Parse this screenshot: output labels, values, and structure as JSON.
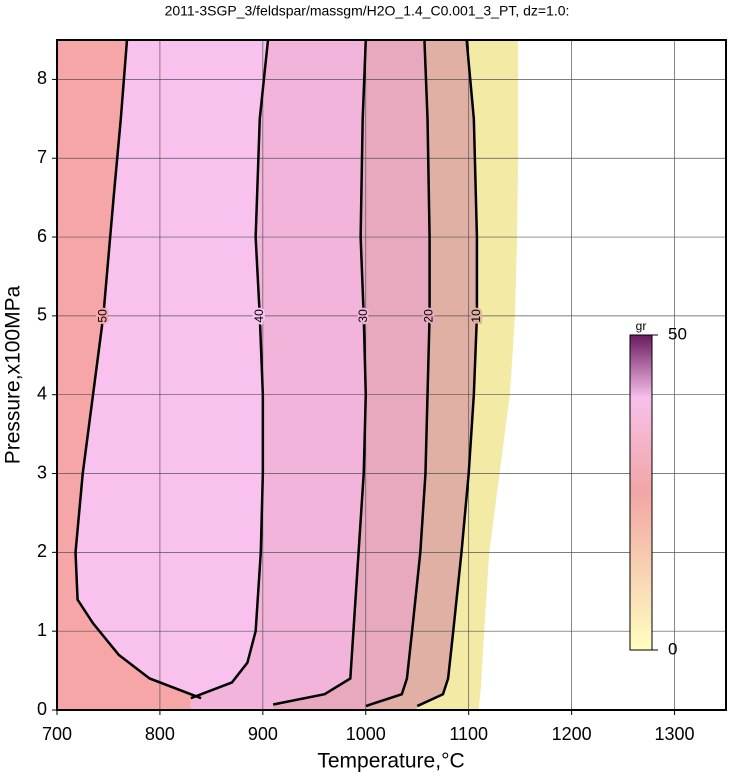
{
  "chart_data": {
    "type": "contour",
    "title": "2011-3SGP_3/feldspar/massgm/H2O_1.4_C0.001_3_PT, dz=1.0:",
    "x_label": "Temperature,°C",
    "y_label": "Pressure,x100MPa",
    "xlim": [
      700,
      1350
    ],
    "xticks": [
      700,
      800,
      900,
      1000,
      1100,
      1200,
      1300
    ],
    "ylim": [
      0,
      8.5
    ],
    "yticks": [
      0,
      1,
      2,
      3,
      4,
      5,
      6,
      7,
      8
    ],
    "grid": true,
    "contours": [
      {
        "level": 50,
        "color": "#f6a6a6",
        "x": [
          768,
          762,
          755,
          745,
          735,
          725,
          718,
          720,
          735,
          760,
          790,
          840
        ],
        "y": [
          8.5,
          7.5,
          6.5,
          5,
          4,
          3,
          2,
          1.4,
          1.1,
          0.7,
          0.4,
          0.15
        ]
      },
      {
        "level": 40,
        "color": "#f9c2ee",
        "x": [
          905,
          897,
          893,
          897,
          900,
          900,
          898,
          893,
          885,
          870,
          830
        ],
        "y": [
          8.5,
          7.5,
          6,
          5,
          4,
          3,
          2,
          1,
          0.6,
          0.35,
          0.15
        ]
      },
      {
        "level": 30,
        "color": "#f3b4dc",
        "x": [
          1000,
          997,
          995,
          998,
          1000,
          998,
          993,
          988,
          985,
          960,
          910
        ],
        "y": [
          8.5,
          7.5,
          6,
          5,
          4,
          3,
          2,
          1,
          0.4,
          0.2,
          0.07
        ]
      },
      {
        "level": 20,
        "color": "#e8a9bf",
        "x": [
          1057,
          1060,
          1062,
          1062,
          1060,
          1058,
          1053,
          1045,
          1040,
          1035,
          1000
        ],
        "y": [
          8.5,
          7.5,
          6,
          5,
          4,
          3,
          2,
          1,
          0.4,
          0.2,
          0.05
        ]
      },
      {
        "level": 10,
        "color": "#e0b0a4",
        "x": [
          1098,
          1105,
          1108,
          1108,
          1105,
          1100,
          1093,
          1085,
          1080,
          1075,
          1050
        ],
        "y": [
          8.5,
          7.5,
          6,
          5,
          4,
          3,
          2,
          1,
          0.4,
          0.2,
          0.05
        ]
      }
    ],
    "extent": {
      "color": "#f3eaa6",
      "x": [
        1148,
        1148,
        1147,
        1145,
        1140,
        1130,
        1120,
        1115,
        1112,
        1110
      ],
      "y": [
        8.5,
        7,
        6,
        5,
        4,
        3,
        2,
        1,
        0.3,
        0.05
      ]
    },
    "colorbar": {
      "label": "gr",
      "lim": [
        0,
        50
      ],
      "ticks": [
        0,
        50
      ]
    }
  }
}
